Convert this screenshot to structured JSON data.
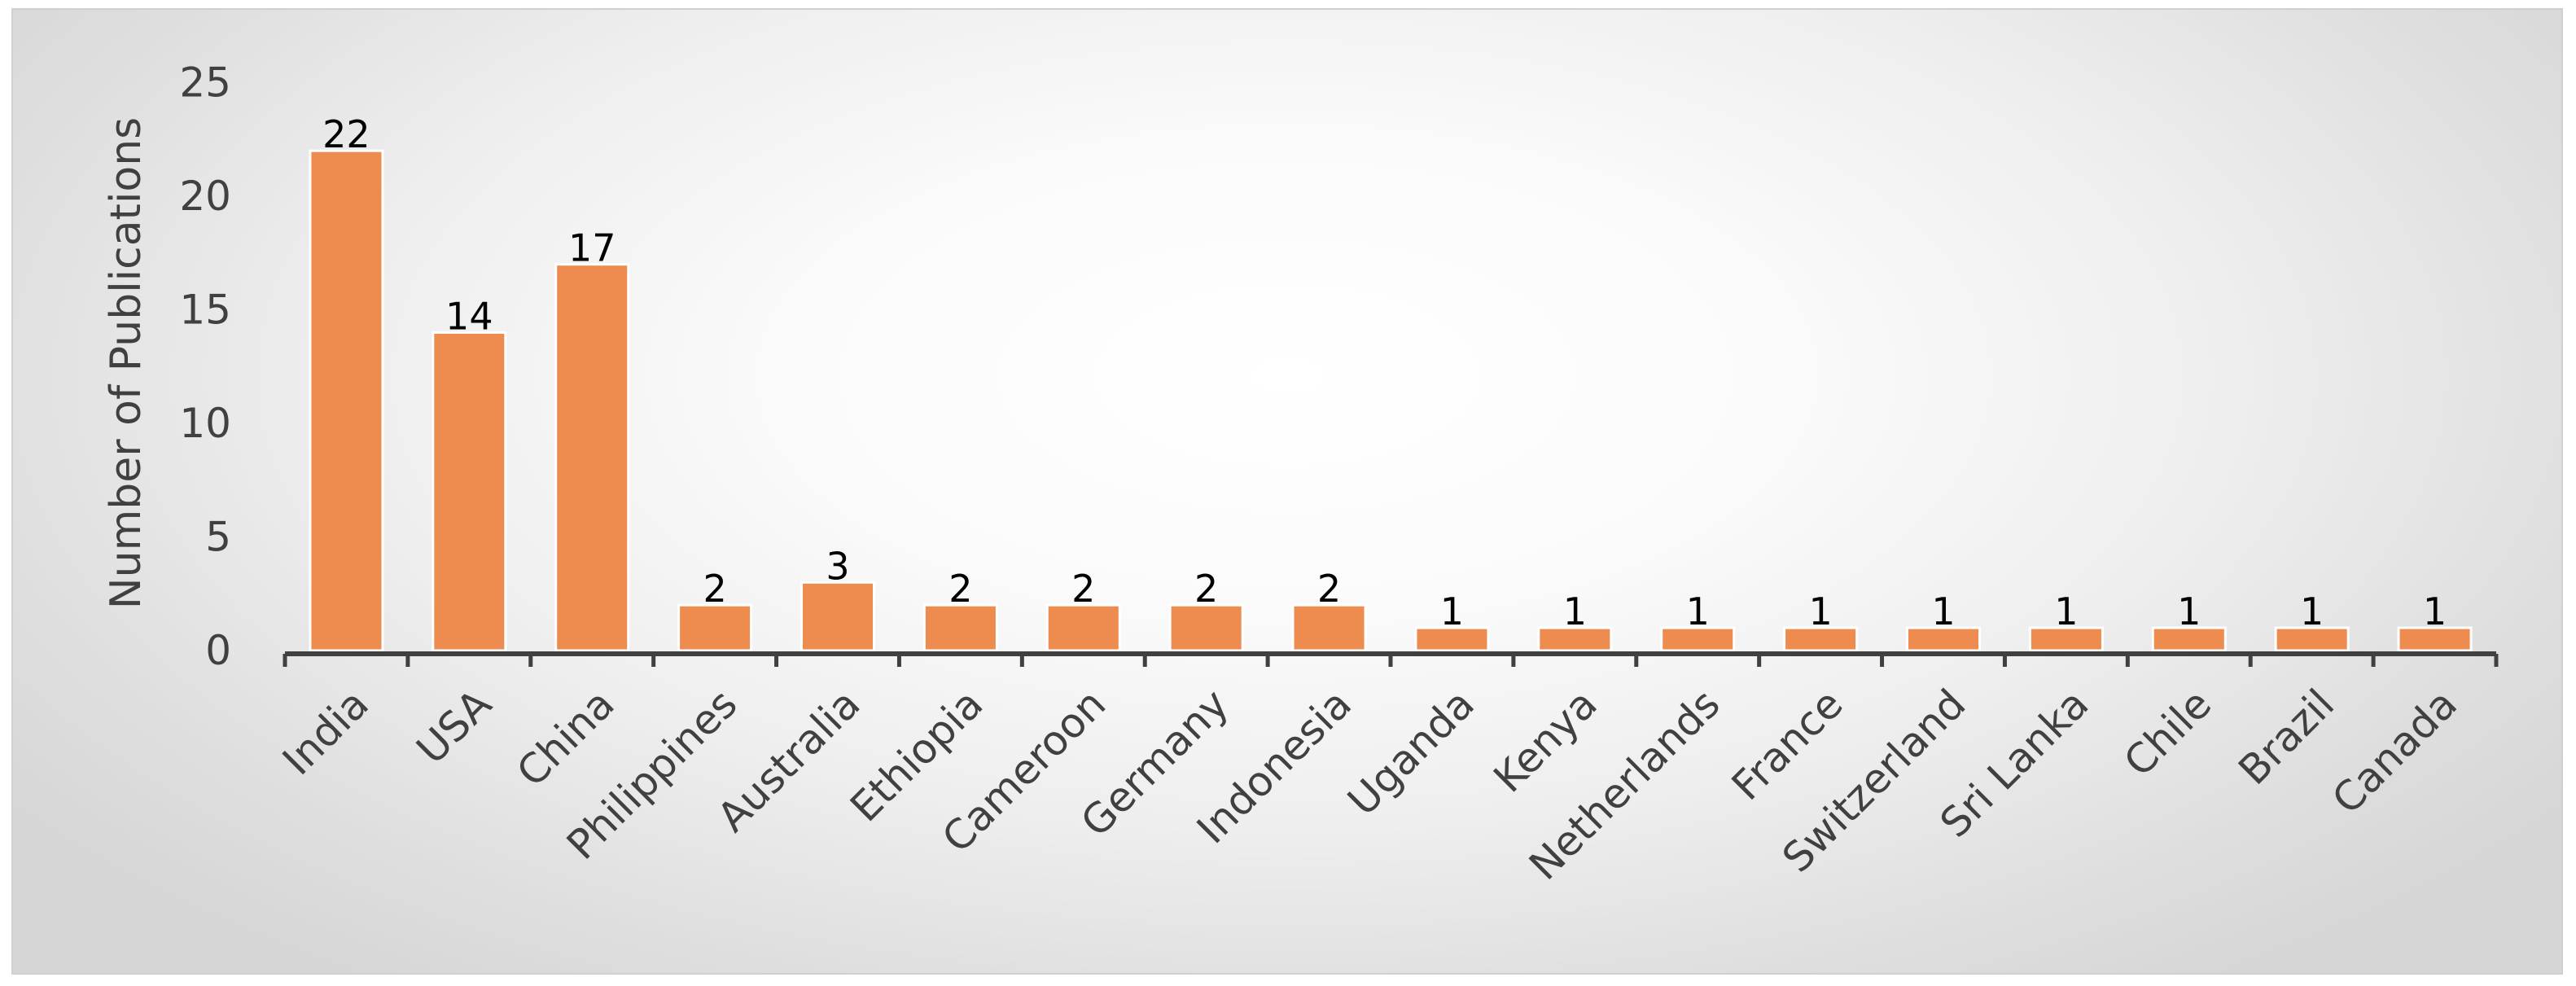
{
  "chart_data": {
    "type": "bar",
    "title": "",
    "xlabel": "",
    "ylabel": "Number of Publications",
    "ylim": [
      0,
      25
    ],
    "yticks": [
      0,
      5,
      10,
      15,
      20,
      25
    ],
    "grid": false,
    "legend": "none",
    "bar_color": "#ED8C4E",
    "bar_edge_color": "#FFFFFF",
    "axis_color": "#404040",
    "categories": [
      "India",
      "USA",
      "China",
      "Philippines",
      "Australia",
      "Ethiopia",
      "Cameroon",
      "Germany",
      "Indonesia",
      "Uganda",
      "Kenya",
      "Netherlands",
      "France",
      "Switzerland",
      "Sri Lanka",
      "Chile",
      "Brazil",
      "Canada"
    ],
    "values": [
      22,
      14,
      17,
      2,
      3,
      2,
      2,
      2,
      2,
      1,
      1,
      1,
      1,
      1,
      1,
      1,
      1,
      1
    ],
    "data_labels": true
  }
}
